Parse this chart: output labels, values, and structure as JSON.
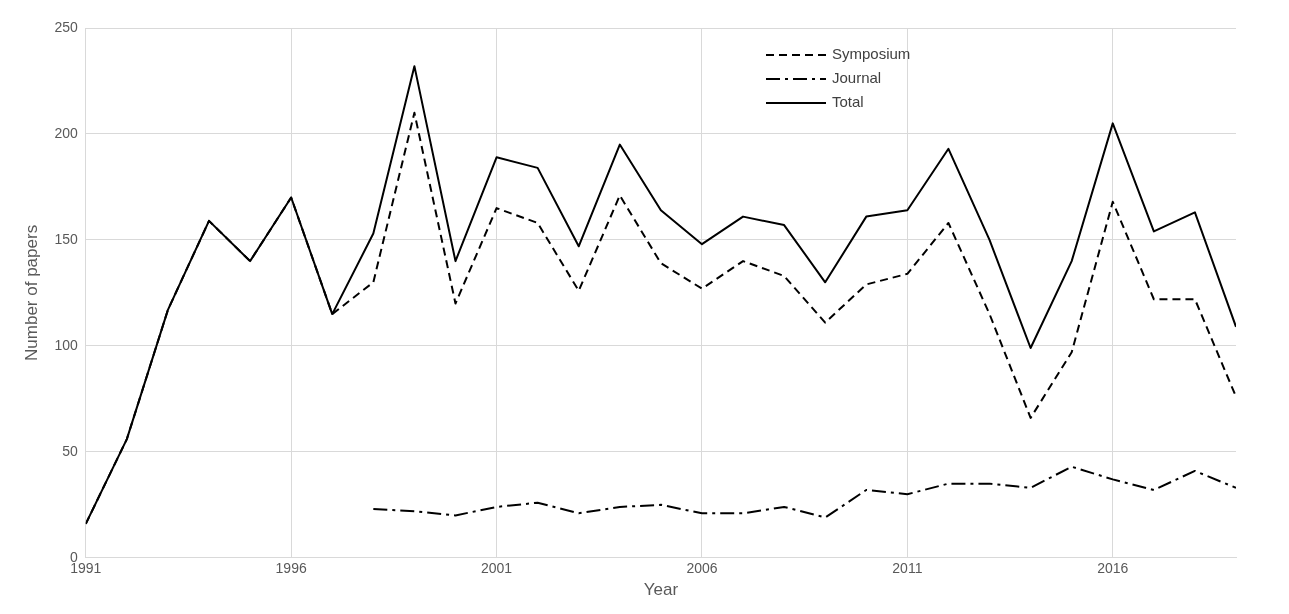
{
  "chart_data": {
    "type": "line",
    "xlabel": "Year",
    "ylabel": "Number of papers",
    "x": [
      1991,
      1992,
      1993,
      1994,
      1995,
      1996,
      1997,
      1998,
      1999,
      2000,
      2001,
      2002,
      2003,
      2004,
      2005,
      2006,
      2007,
      2008,
      2009,
      2010,
      2011,
      2012,
      2013,
      2014,
      2015,
      2016,
      2017,
      2018,
      2019
    ],
    "series": [
      {
        "name": "Symposium",
        "color": "#000000",
        "line_style": "dashed",
        "values": [
          16,
          56,
          117,
          159,
          140,
          170,
          115,
          130,
          210,
          120,
          165,
          158,
          126,
          171,
          139,
          127,
          140,
          133,
          111,
          129,
          134,
          158,
          115,
          66,
          97,
          168,
          122,
          122,
          76
        ]
      },
      {
        "name": "Journal",
        "color": "#000000",
        "line_style": "dashdot",
        "values": [
          null,
          null,
          null,
          null,
          null,
          null,
          null,
          23,
          22,
          20,
          24,
          26,
          21,
          24,
          25,
          21,
          21,
          24,
          19,
          32,
          30,
          35,
          35,
          33,
          43,
          37,
          32,
          41,
          33
        ]
      },
      {
        "name": "Total",
        "color": "#000000",
        "line_style": "solid",
        "values": [
          16,
          56,
          117,
          159,
          140,
          170,
          115,
          153,
          232,
          140,
          189,
          184,
          147,
          195,
          164,
          148,
          161,
          157,
          130,
          161,
          164,
          193,
          150,
          99,
          140,
          205,
          154,
          163,
          109
        ]
      }
    ],
    "xlim": [
      1991,
      2019
    ],
    "xticks": [
      1991,
      1996,
      2001,
      2006,
      2011,
      2016
    ],
    "ylim": [
      0,
      250
    ],
    "yticks": [
      0,
      50,
      100,
      150,
      200,
      250
    ],
    "grid": true,
    "legend": "top right",
    "marker": "none"
  }
}
